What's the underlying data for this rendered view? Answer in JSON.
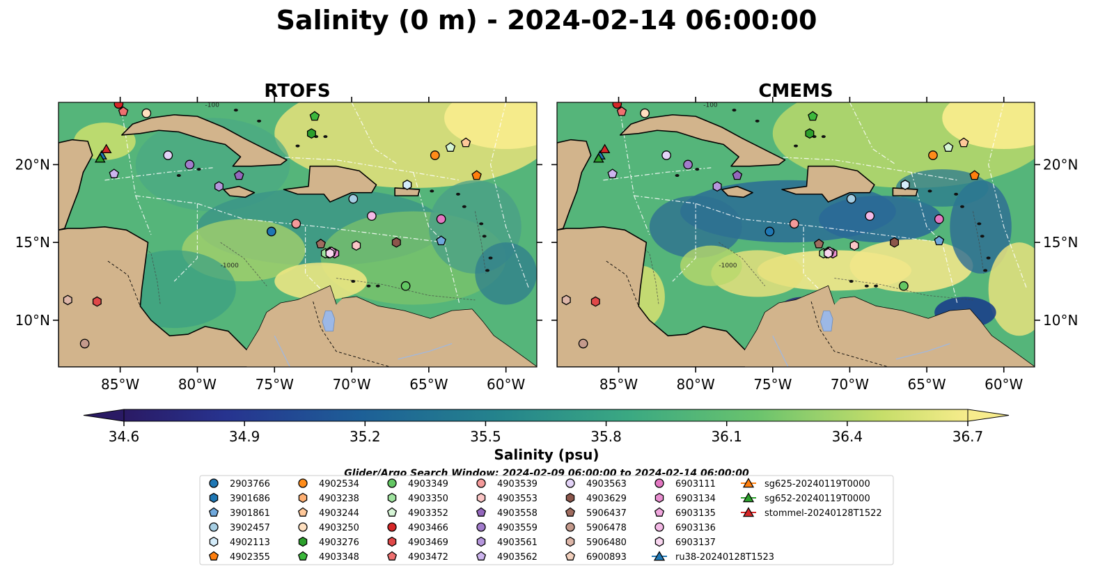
{
  "title": "Salinity (0 m) - 2024-02-14 06:00:00",
  "panels": [
    {
      "title": "RTOFS"
    },
    {
      "title": "CMEMS"
    }
  ],
  "colorbar": {
    "label": "Salinity (psu)",
    "min": 34.6,
    "max": 36.7,
    "ticks": [
      "34.6",
      "34.9",
      "35.2",
      "35.5",
      "35.8",
      "36.1",
      "36.4",
      "36.7"
    ]
  },
  "search_window": "Glider/Argo Search Window: 2024-02-09 06:00:00 to 2024-02-14 06:00:00",
  "colors": {
    "land": "#d2b48c",
    "lake": "#9cb8e6",
    "low_salinity": "#2a1f6e",
    "mid_salinity": "#3e9a8a",
    "high_salinity": "#f7ec8c"
  },
  "chart_data": {
    "type": "map",
    "variable": "Salinity (0 m)",
    "units": "psu",
    "lon_range": [
      -89,
      -58
    ],
    "lat_range": [
      7,
      24
    ],
    "lon_ticks": [
      "85°W",
      "80°W",
      "75°W",
      "70°W",
      "65°W",
      "60°W"
    ],
    "lat_ticks": [
      "10°N",
      "15°N",
      "20°N"
    ],
    "contour_labels": [
      "-100",
      "-1000"
    ],
    "legend": [
      {
        "id": "2903766",
        "marker": "circle",
        "color": "#1f77b4"
      },
      {
        "id": "3901686",
        "marker": "hexagon",
        "color": "#1f77b4"
      },
      {
        "id": "3901861",
        "marker": "pentagon",
        "color": "#6fa8dc"
      },
      {
        "id": "3902457",
        "marker": "circle",
        "color": "#a6cee3"
      },
      {
        "id": "4902113",
        "marker": "hexagon",
        "color": "#d4ecfa"
      },
      {
        "id": "4902355",
        "marker": "pentagon",
        "color": "#ff7f0e"
      },
      {
        "id": "4902534",
        "marker": "circle",
        "color": "#ff8c1a"
      },
      {
        "id": "4903238",
        "marker": "hexagon",
        "color": "#ffb073"
      },
      {
        "id": "4903244",
        "marker": "pentagon",
        "color": "#ffc899"
      },
      {
        "id": "4903250",
        "marker": "circle",
        "color": "#ffe0c0"
      },
      {
        "id": "4903276",
        "marker": "hexagon",
        "color": "#2ca02c"
      },
      {
        "id": "4903348",
        "marker": "pentagon",
        "color": "#3cb83c"
      },
      {
        "id": "4903349",
        "marker": "circle",
        "color": "#63c763"
      },
      {
        "id": "4903350",
        "marker": "hexagon",
        "color": "#9fe39f"
      },
      {
        "id": "4903352",
        "marker": "pentagon",
        "color": "#d6f5d6"
      },
      {
        "id": "4903466",
        "marker": "circle",
        "color": "#d62728"
      },
      {
        "id": "4903469",
        "marker": "hexagon",
        "color": "#e04848"
      },
      {
        "id": "4903472",
        "marker": "pentagon",
        "color": "#ef7070"
      },
      {
        "id": "4903539",
        "marker": "circle",
        "color": "#f49a9a"
      },
      {
        "id": "4903553",
        "marker": "hexagon",
        "color": "#fbc6c6"
      },
      {
        "id": "4903558",
        "marker": "pentagon",
        "color": "#9467bd"
      },
      {
        "id": "4903559",
        "marker": "circle",
        "color": "#a27ccc"
      },
      {
        "id": "4903561",
        "marker": "hexagon",
        "color": "#b596dc"
      },
      {
        "id": "4903562",
        "marker": "pentagon",
        "color": "#cdb5ee"
      },
      {
        "id": "4903563",
        "marker": "circle",
        "color": "#e3d3f7"
      },
      {
        "id": "4903629",
        "marker": "hexagon",
        "color": "#8c564b"
      },
      {
        "id": "5906437",
        "marker": "pentagon",
        "color": "#a06c5f"
      },
      {
        "id": "5906478",
        "marker": "circle",
        "color": "#c49a8c"
      },
      {
        "id": "5906480",
        "marker": "hexagon",
        "color": "#ddb6a8"
      },
      {
        "id": "6900893",
        "marker": "pentagon",
        "color": "#f2d0bd"
      },
      {
        "id": "6903111",
        "marker": "circle",
        "color": "#e377c2"
      },
      {
        "id": "6903134",
        "marker": "hexagon",
        "color": "#e98ed0"
      },
      {
        "id": "6903135",
        "marker": "pentagon",
        "color": "#f0a6dd"
      },
      {
        "id": "6903136",
        "marker": "circle",
        "color": "#f4b9e6"
      },
      {
        "id": "6903137",
        "marker": "hexagon",
        "color": "#f9d6f0"
      },
      {
        "id": "ru38-20240128T1523",
        "marker": "triangle-line",
        "color": "#1f77b4"
      },
      {
        "id": "sg625-20240119T0000",
        "marker": "triangle-line",
        "color": "#ff7f0e"
      },
      {
        "id": "sg652-20240119T0000",
        "marker": "triangle-line",
        "color": "#2ca02c"
      },
      {
        "id": "stommel-20240128T1522",
        "marker": "triangle-line",
        "color": "#d62728"
      }
    ],
    "observations": [
      {
        "id": "2903766",
        "lon": -75.2,
        "lat": 15.7
      },
      {
        "id": "3901686",
        "lon": -66.4,
        "lat": 18.7
      },
      {
        "id": "3901861",
        "lon": -64.2,
        "lat": 15.1
      },
      {
        "id": "3902457",
        "lon": -69.9,
        "lat": 17.8
      },
      {
        "id": "4902113",
        "lon": -66.4,
        "lat": 18.7
      },
      {
        "id": "4902355",
        "lon": -61.9,
        "lat": 19.3
      },
      {
        "id": "4902534",
        "lon": -64.6,
        "lat": 20.6
      },
      {
        "id": "4903238",
        "lon": -71.5,
        "lat": 14.3
      },
      {
        "id": "4903244",
        "lon": -62.6,
        "lat": 21.4
      },
      {
        "id": "4903250",
        "lon": -83.3,
        "lat": 23.3
      },
      {
        "id": "4903276",
        "lon": -72.6,
        "lat": 22.0
      },
      {
        "id": "4903348",
        "lon": -72.4,
        "lat": 23.1
      },
      {
        "id": "4903349",
        "lon": -66.5,
        "lat": 12.2
      },
      {
        "id": "4903350",
        "lon": -71.7,
        "lat": 14.3
      },
      {
        "id": "4903352",
        "lon": -63.6,
        "lat": 21.1
      },
      {
        "id": "4903466",
        "lon": -85.1,
        "lat": 23.9
      },
      {
        "id": "4903469",
        "lon": -86.5,
        "lat": 11.2
      },
      {
        "id": "4903472",
        "lon": -84.8,
        "lat": 23.4
      },
      {
        "id": "4903539",
        "lon": -73.6,
        "lat": 16.2
      },
      {
        "id": "4903553",
        "lon": -69.7,
        "lat": 14.8
      },
      {
        "id": "4903558",
        "lon": -77.3,
        "lat": 19.3
      },
      {
        "id": "4903559",
        "lon": -80.5,
        "lat": 20.0
      },
      {
        "id": "4903561",
        "lon": -78.6,
        "lat": 18.6
      },
      {
        "id": "4903562",
        "lon": -85.4,
        "lat": 19.4
      },
      {
        "id": "4903563",
        "lon": -81.9,
        "lat": 20.6
      },
      {
        "id": "4903629",
        "lon": -67.1,
        "lat": 15.0
      },
      {
        "id": "5906437",
        "lon": -72.0,
        "lat": 14.9
      },
      {
        "id": "5906478",
        "lon": -87.3,
        "lat": 8.5
      },
      {
        "id": "5906480",
        "lon": -88.4,
        "lat": 11.3
      },
      {
        "id": "6900893",
        "lon": -71.4,
        "lat": 14.4
      },
      {
        "id": "6903111",
        "lon": -64.2,
        "lat": 16.5
      },
      {
        "id": "6903134",
        "lon": -71.1,
        "lat": 14.3
      },
      {
        "id": "6903135",
        "lon": -71.3,
        "lat": 14.4
      },
      {
        "id": "6903136",
        "lon": -68.7,
        "lat": 16.7
      },
      {
        "id": "6903137",
        "lon": -71.4,
        "lat": 14.3
      },
      {
        "id": "ru38-20240128T1523",
        "lon": -86.2,
        "lat": 20.6
      },
      {
        "id": "sg652-20240119T0000",
        "lon": -86.3,
        "lat": 20.4
      },
      {
        "id": "stommel-20240128T1522",
        "lon": -85.9,
        "lat": 21.0
      }
    ]
  }
}
